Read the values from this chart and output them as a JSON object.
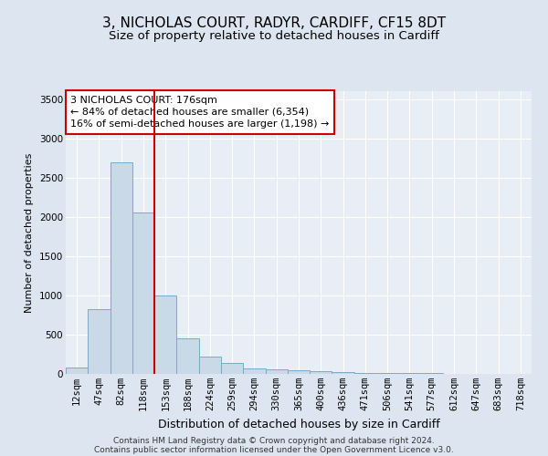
{
  "title1": "3, NICHOLAS COURT, RADYR, CARDIFF, CF15 8DT",
  "title2": "Size of property relative to detached houses in Cardiff",
  "xlabel": "Distribution of detached houses by size in Cardiff",
  "ylabel": "Number of detached properties",
  "categories": [
    "12sqm",
    "47sqm",
    "82sqm",
    "118sqm",
    "153sqm",
    "188sqm",
    "224sqm",
    "259sqm",
    "294sqm",
    "330sqm",
    "365sqm",
    "400sqm",
    "436sqm",
    "471sqm",
    "506sqm",
    "541sqm",
    "577sqm",
    "612sqm",
    "647sqm",
    "683sqm",
    "718sqm"
  ],
  "values": [
    80,
    820,
    2700,
    2050,
    1000,
    450,
    220,
    145,
    75,
    55,
    45,
    30,
    20,
    15,
    10,
    8,
    6,
    5,
    4,
    3,
    2
  ],
  "bar_color": "#c9d9e8",
  "bar_edge_color": "#7aaac8",
  "vline_color": "#cc0000",
  "vline_x_idx": 3.5,
  "annotation_line1": "3 NICHOLAS COURT: 176sqm",
  "annotation_line2": "← 84% of detached houses are smaller (6,354)",
  "annotation_line3": "16% of semi-detached houses are larger (1,198) →",
  "annotation_box_color": "#cc0000",
  "annotation_box_face": "#ffffff",
  "ylim": [
    0,
    3600
  ],
  "yticks": [
    0,
    500,
    1000,
    1500,
    2000,
    2500,
    3000,
    3500
  ],
  "bg_color": "#dde6f0",
  "plot_bg_color": "#e8eef5",
  "footer_line1": "Contains HM Land Registry data © Crown copyright and database right 2024.",
  "footer_line2": "Contains public sector information licensed under the Open Government Licence v3.0.",
  "title1_fontsize": 11,
  "title2_fontsize": 9.5,
  "xlabel_fontsize": 9,
  "ylabel_fontsize": 8,
  "tick_fontsize": 7.5,
  "annotation_fontsize": 8,
  "footer_fontsize": 6.5
}
